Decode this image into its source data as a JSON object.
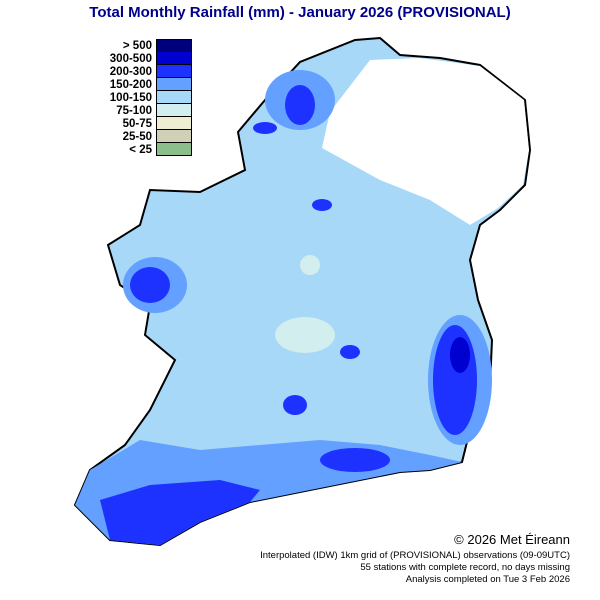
{
  "title": "Total Monthly Rainfall (mm) - January 2026  (PROVISIONAL)",
  "legend": [
    {
      "label": "> 500",
      "color": "#00007a"
    },
    {
      "label": "300-500",
      "color": "#0000d0"
    },
    {
      "label": "200-300",
      "color": "#1e32ff"
    },
    {
      "label": "150-200",
      "color": "#64a0ff"
    },
    {
      "label": "100-150",
      "color": "#a8d8f8"
    },
    {
      "label": "75-100",
      "color": "#d2eeee"
    },
    {
      "label": "50-75",
      "color": "#eeeed2"
    },
    {
      "label": "25-50",
      "color": "#d0d0b6"
    },
    {
      "label": "< 25",
      "color": "#8cbe8c"
    }
  ],
  "copyright": "© 2026 Met Éireann",
  "footer": [
    "Interpolated (IDW) 1km grid of  (PROVISIONAL) observations (09-09UTC)",
    "55 stations with complete record, no days missing",
    "Analysis completed on Tue 3 Feb 2026"
  ]
}
